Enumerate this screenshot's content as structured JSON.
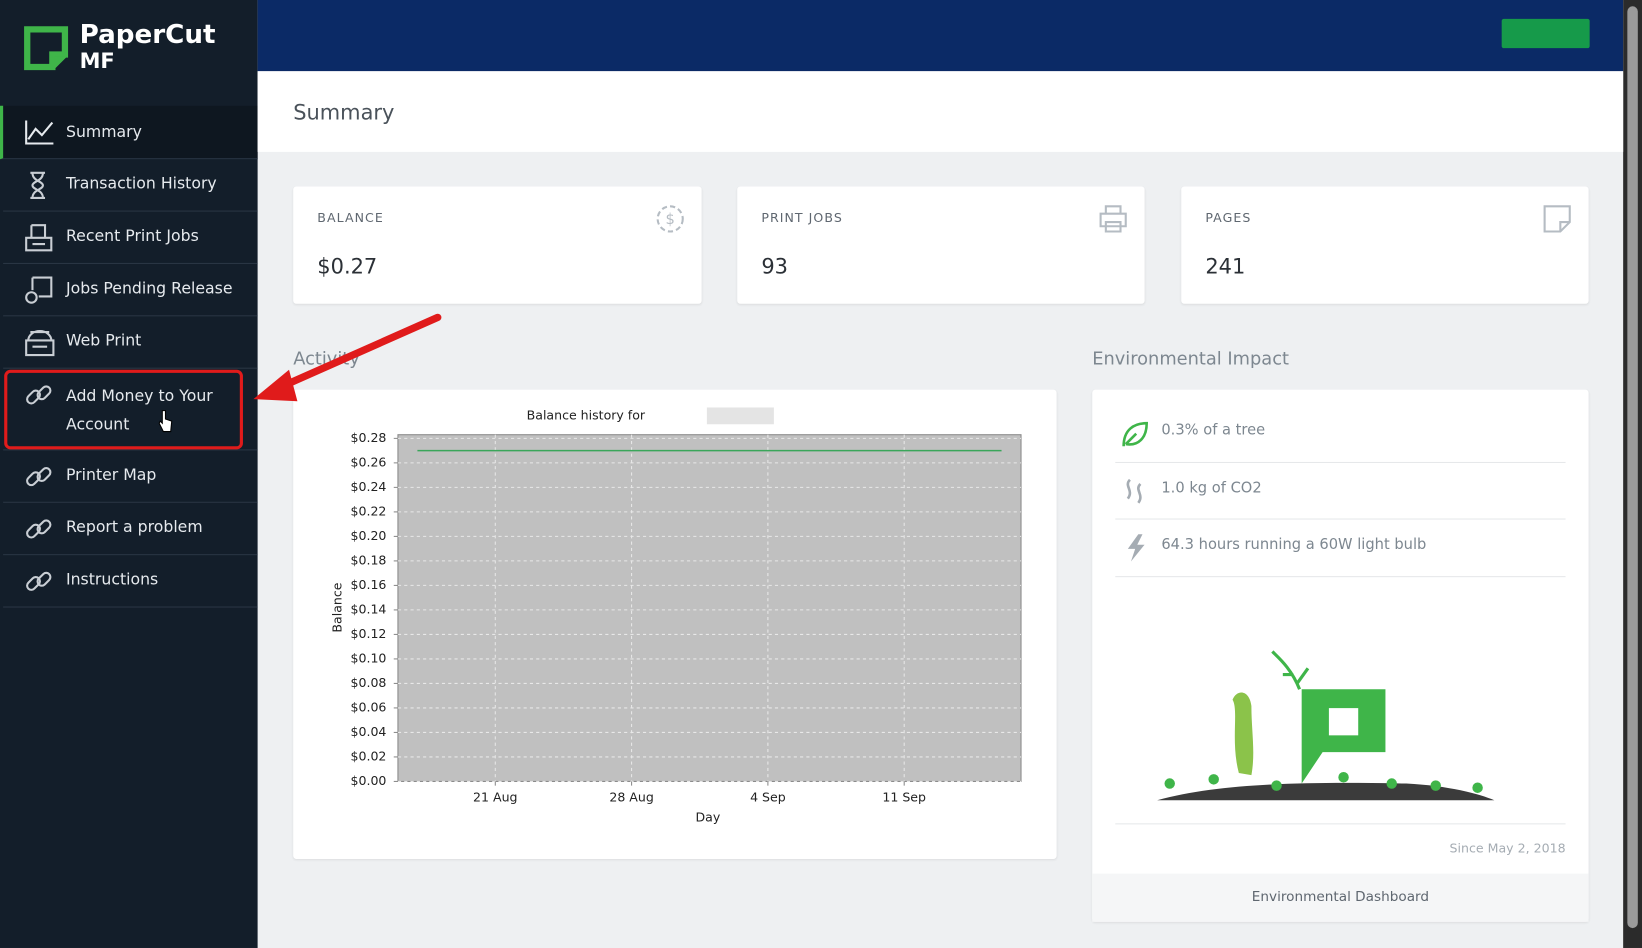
{
  "logo": {
    "name": "PaperCut",
    "edition": "MF"
  },
  "nav": [
    "Summary",
    "Transaction History",
    "Recent Print Jobs",
    "Jobs Pending Release",
    "Web Print",
    "Add Money to Your Account",
    "Printer Map",
    "Report a problem",
    "Instructions"
  ],
  "header": {
    "title": "Summary"
  },
  "cards": [
    {
      "label": "BALANCE",
      "value": "$0.27"
    },
    {
      "label": "PRINT JOBS",
      "value": 93
    },
    {
      "label": "PAGES",
      "value": 241
    }
  ],
  "activity": {
    "heading": "Activity"
  },
  "chart_data": {
    "type": "line",
    "title": "Balance history for",
    "x_label": "Day",
    "y_label": "Balance",
    "x": [
      "17 Aug",
      "16 Sep"
    ],
    "series": [
      {
        "name": "Balance",
        "color": "#3aa65a",
        "values": [
          0.27,
          0.27
        ]
      }
    ],
    "xlim": [
      "16 Aug",
      "17 Sep"
    ],
    "xticks": [
      "21 Aug",
      "28 Aug",
      "4 Sep",
      "11 Sep"
    ],
    "ylim": [
      0,
      0.283
    ],
    "yticks": [
      {
        "value": 0,
        "label": "$0.00"
      },
      {
        "value": 0.02,
        "label": "$0.02"
      },
      {
        "value": 0.04,
        "label": "$0.04"
      },
      {
        "value": 0.06,
        "label": "$0.06"
      },
      {
        "value": 0.08,
        "label": "$0.08"
      },
      {
        "value": 0.1,
        "label": "$0.10"
      },
      {
        "value": 0.12,
        "label": "$0.12"
      },
      {
        "value": 0.14,
        "label": "$0.14"
      },
      {
        "value": 0.16,
        "label": "$0.16"
      },
      {
        "value": 0.18,
        "label": "$0.18"
      },
      {
        "value": 0.2,
        "label": "$0.20"
      },
      {
        "value": 0.22,
        "label": "$0.22"
      },
      {
        "value": 0.24,
        "label": "$0.24"
      },
      {
        "value": 0.26,
        "label": "$0.26"
      },
      {
        "value": 0.28,
        "label": "$0.28"
      }
    ],
    "grid": true
  },
  "environment": {
    "heading": "Environmental Impact",
    "items": [
      "0.3% of a tree",
      "1.0 kg of CO2",
      "64.3 hours running a 60W light bulb"
    ],
    "since": "Since May 2, 2018",
    "link": "Environmental Dashboard"
  }
}
